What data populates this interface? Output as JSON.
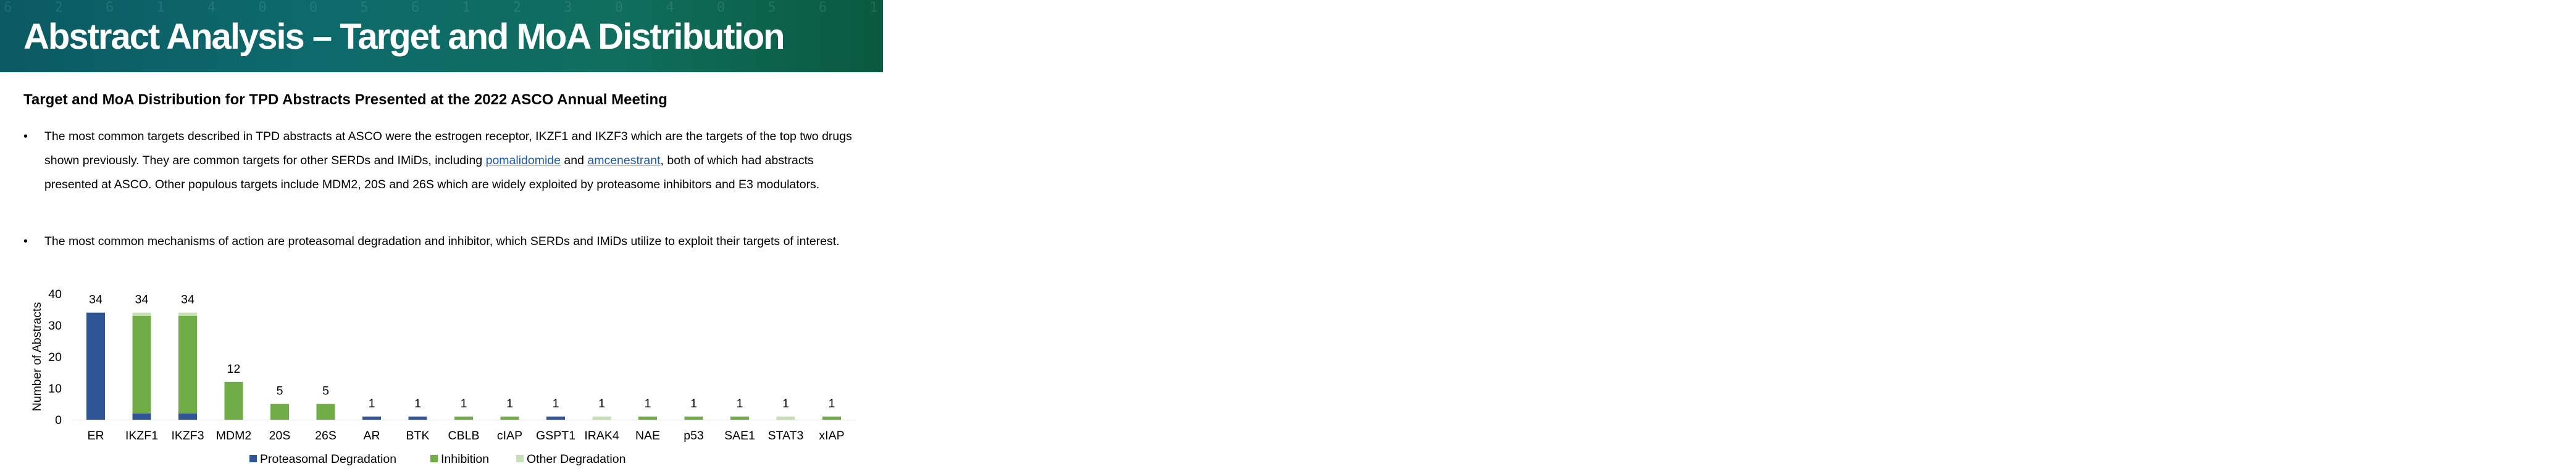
{
  "header": {
    "title": "Abstract Analysis – Target and MoA Distribution",
    "background_digits": "6 2 6 1 4 0 0 5 6 1 2 3 0 4 0 5 6 1 2 3 0 1 6 5 4 0 0 9 1 0 1 0 1 6 3 5 6 6 3 5 2 5 9 0 3 6 1 3 6 2 0"
  },
  "subtitle": "Target and MoA Distribution for TPD Abstracts Presented at the 2022 ASCO Annual Meeting",
  "bullets": [
    {
      "marker": "•",
      "part1": "The most common targets described in TPD abstracts at ASCO were the estrogen receptor, IKZF1 and IKZF3 which are the targets of the top two drugs shown previously. They are common targets for other SERDs and IMiDs, including ",
      "link1": "pomalidomide",
      "part2": " and ",
      "link2": "amcenestrant",
      "part3": ", both of which had abstracts presented at ASCO. Other populous targets include MDM2, 20S and 26S which are widely exploited by proteasome inhibitors and E3 modulators."
    },
    {
      "marker": "•",
      "text": "The most common mechanisms of action are proteasomal degradation and inhibitor, which SERDs and IMiDs utilize to exploit their targets of interest."
    }
  ],
  "chart_data": {
    "type": "bar",
    "stacked": true,
    "ylabel": "Number of Abstracts",
    "xlabel": "",
    "ylim": [
      0,
      40
    ],
    "yticks": [
      0,
      10,
      20,
      30,
      40
    ],
    "grid": false,
    "legend_position": "bottom",
    "categories": [
      "ER",
      "IKZF1",
      "IKZF3",
      "MDM2",
      "20S",
      "26S",
      "AR",
      "BTK",
      "CBLB",
      "cIAP",
      "GSPT1",
      "IRAK4",
      "NAE",
      "p53",
      "SAE1",
      "STAT3",
      "xIAP"
    ],
    "totals": [
      34,
      34,
      34,
      12,
      5,
      5,
      1,
      1,
      1,
      1,
      1,
      1,
      1,
      1,
      1,
      1,
      1
    ],
    "series": [
      {
        "name": "Proteasomal Degradation",
        "color": "#2f5597",
        "values": [
          34,
          2,
          2,
          0,
          0,
          0,
          1,
          1,
          0,
          0,
          1,
          0,
          0,
          0,
          0,
          0,
          0
        ]
      },
      {
        "name": "Inhibition",
        "color": "#70ad47",
        "values": [
          0,
          31,
          31,
          12,
          5,
          5,
          0,
          0,
          1,
          1,
          0,
          0,
          1,
          1,
          1,
          0,
          1
        ]
      },
      {
        "name": "Other Degradation",
        "color": "#c5e0b4",
        "values": [
          0,
          1,
          1,
          0,
          0,
          0,
          0,
          0,
          0,
          0,
          0,
          1,
          0,
          0,
          0,
          1,
          0
        ]
      }
    ]
  }
}
